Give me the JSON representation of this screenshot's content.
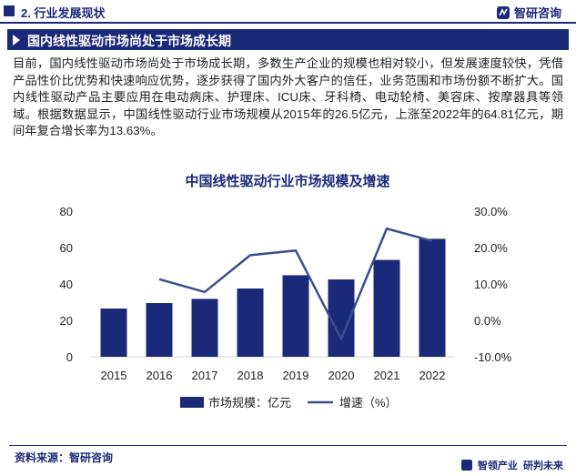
{
  "header": {
    "section_title": "2. 行业发展现状",
    "brand": "智研咨询"
  },
  "banner": {
    "title": "国内线性驱动市场尚处于市场成长期"
  },
  "paragraph": "目前，国内线性驱动市场尚处于市场成长期，多数生产企业的规模也相对较小，但发展速度较快，凭借产品性价比优势和快速响应优势，逐步获得了国内外大客户的信任，业务范围和市场份额不断扩大。国内线性驱动产品主要应用在电动病床、护理床、ICU床、牙科椅、电动轮椅、美容床、按摩器具等领域。根据数据显示，中国线性驱动行业市场规模从2015年的26.5亿元，上涨至2022年的64.81亿元，期间年复合增长率为13.63%。",
  "chart_data": {
    "type": "bar",
    "title": "中国线性驱动行业市场规模及增速",
    "categories": [
      "2015",
      "2016",
      "2017",
      "2018",
      "2019",
      "2020",
      "2021",
      "2022"
    ],
    "series": [
      {
        "name": "市场规模：亿元",
        "type": "bar",
        "axis": "left",
        "values": [
          26.5,
          29.5,
          31.8,
          37.5,
          44.8,
          42.5,
          53.2,
          64.81
        ]
      },
      {
        "name": "增速（%）",
        "type": "line",
        "axis": "right",
        "values": [
          null,
          11.3,
          7.8,
          17.9,
          19.2,
          -5.1,
          25.2,
          21.8
        ]
      }
    ],
    "y_left": {
      "min": 0,
      "max": 80,
      "ticks": [
        0,
        20,
        40,
        60,
        80
      ]
    },
    "y_right": {
      "min": -10,
      "max": 30,
      "ticks": [
        "-10.0%",
        "0.0%",
        "10.0%",
        "20.0%",
        "30.0%"
      ]
    },
    "legend_position": "bottom",
    "colors": {
      "bar": "#1b2a78",
      "line": "#3a4d8f"
    }
  },
  "footer": {
    "source": "资料来源：智研咨询",
    "slogan_a": "智领产业",
    "slogan_b": "研判未来"
  }
}
